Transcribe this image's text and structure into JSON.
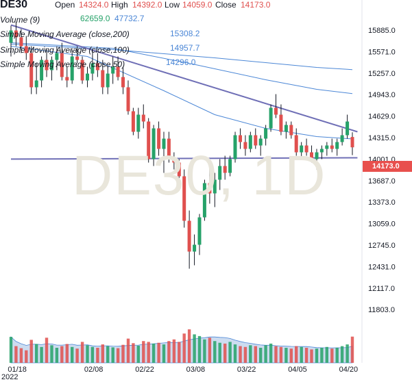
{
  "symbol": "DE30",
  "watermark": "DE30, 1D",
  "ohlc": {
    "open_label": "Open",
    "open": "14324.0",
    "high_label": "High",
    "high": "14392.0",
    "low_label": "Low",
    "low": "14059.0",
    "close_label": "Close",
    "close": "14173.0"
  },
  "volume": {
    "label": "Volume (9)",
    "value1": "62659.0",
    "value2": "47732.7"
  },
  "indicators": [
    {
      "label": "Simple Moving Average (close,200)",
      "value": "15308.2"
    },
    {
      "label": "Simple Moving Average (close,100)",
      "value": "14957.7"
    },
    {
      "label": "Simple Moving Average (close,50)",
      "value": "14296.0"
    }
  ],
  "price_badge": "14173.0",
  "colors": {
    "up": "#26a269",
    "down": "#e0504e",
    "ma": "#4a86d6",
    "trendline": "#6f6fb6",
    "volume_area": "#b8cdea",
    "badge": "#e8504d"
  },
  "chart_data": {
    "type": "candlestick",
    "ylim": [
      11600,
      16050
    ],
    "y_ticks": [
      15885.0,
      15571.0,
      15257.0,
      14943.0,
      14629.0,
      14315.0,
      14001.0,
      13687.0,
      13373.0,
      13059.0,
      12745.0,
      12431.0,
      12117.0,
      11803.0
    ],
    "y_tick_labels": [
      "15885.0",
      "15571.0",
      "15257.0",
      "14943.0",
      "14629.0",
      "14315.0",
      "14001.0",
      "13687.0",
      "13373.0",
      "13059.0",
      "12745.0",
      "12431.0",
      "12117.0",
      "11803.0"
    ],
    "x_labels": [
      {
        "label": "01/18",
        "index": 1
      },
      {
        "label": "02/08",
        "index": 16
      },
      {
        "label": "02/22",
        "index": 26
      },
      {
        "label": "03/08",
        "index": 36
      },
      {
        "label": "03/22",
        "index": 46
      },
      {
        "label": "04/05",
        "index": 56
      },
      {
        "label": "04/20",
        "index": 66
      }
    ],
    "x_year_label": "2022",
    "candles": [
      {
        "o": 15700,
        "h": 15950,
        "l": 15500,
        "c": 15880
      },
      {
        "o": 15880,
        "h": 16000,
        "l": 15650,
        "c": 15780
      },
      {
        "o": 15780,
        "h": 15900,
        "l": 15550,
        "c": 15650
      },
      {
        "o": 15650,
        "h": 15800,
        "l": 15450,
        "c": 15550
      },
      {
        "o": 15550,
        "h": 15650,
        "l": 14950,
        "c": 15050
      },
      {
        "o": 15050,
        "h": 15400,
        "l": 14950,
        "c": 15150
      },
      {
        "o": 15150,
        "h": 15500,
        "l": 15050,
        "c": 15450
      },
      {
        "o": 15450,
        "h": 15600,
        "l": 15200,
        "c": 15300
      },
      {
        "o": 15300,
        "h": 15500,
        "l": 15150,
        "c": 15450
      },
      {
        "o": 15450,
        "h": 15650,
        "l": 15300,
        "c": 15550
      },
      {
        "o": 15550,
        "h": 15700,
        "l": 15150,
        "c": 15200
      },
      {
        "o": 15200,
        "h": 15350,
        "l": 15050,
        "c": 15150
      },
      {
        "o": 15150,
        "h": 15600,
        "l": 15100,
        "c": 15500
      },
      {
        "o": 15500,
        "h": 15650,
        "l": 15400,
        "c": 15450
      },
      {
        "o": 15450,
        "h": 15500,
        "l": 15100,
        "c": 15150
      },
      {
        "o": 15150,
        "h": 15350,
        "l": 15050,
        "c": 15250
      },
      {
        "o": 15250,
        "h": 15600,
        "l": 15150,
        "c": 15400
      },
      {
        "o": 15400,
        "h": 15550,
        "l": 15200,
        "c": 15300
      },
      {
        "o": 15300,
        "h": 15450,
        "l": 14950,
        "c": 15050
      },
      {
        "o": 15050,
        "h": 15350,
        "l": 14950,
        "c": 15250
      },
      {
        "o": 15250,
        "h": 15500,
        "l": 15100,
        "c": 15350
      },
      {
        "o": 15350,
        "h": 15500,
        "l": 15150,
        "c": 15200
      },
      {
        "o": 15200,
        "h": 15350,
        "l": 14950,
        "c": 15050
      },
      {
        "o": 15050,
        "h": 15150,
        "l": 14650,
        "c": 14700
      },
      {
        "o": 14700,
        "h": 14750,
        "l": 14350,
        "c": 14400
      },
      {
        "o": 14400,
        "h": 14750,
        "l": 14300,
        "c": 14650
      },
      {
        "o": 14650,
        "h": 14800,
        "l": 14450,
        "c": 14550
      },
      {
        "o": 14550,
        "h": 14600,
        "l": 13950,
        "c": 14000
      },
      {
        "o": 14000,
        "h": 14500,
        "l": 13900,
        "c": 14450
      },
      {
        "o": 14450,
        "h": 14550,
        "l": 14050,
        "c": 14150
      },
      {
        "o": 14150,
        "h": 14400,
        "l": 13800,
        "c": 14300
      },
      {
        "o": 14300,
        "h": 14400,
        "l": 13950,
        "c": 14000
      },
      {
        "o": 14000,
        "h": 14100,
        "l": 13850,
        "c": 13950
      },
      {
        "o": 13950,
        "h": 14000,
        "l": 13650,
        "c": 13750
      },
      {
        "o": 13750,
        "h": 13850,
        "l": 13000,
        "c": 13100
      },
      {
        "o": 13100,
        "h": 13250,
        "l": 12400,
        "c": 12650
      },
      {
        "o": 12650,
        "h": 12900,
        "l": 12450,
        "c": 12750
      },
      {
        "o": 12750,
        "h": 13200,
        "l": 12600,
        "c": 13150
      },
      {
        "o": 13150,
        "h": 13700,
        "l": 13100,
        "c": 13650
      },
      {
        "o": 13650,
        "h": 13900,
        "l": 13350,
        "c": 13500
      },
      {
        "o": 13500,
        "h": 13800,
        "l": 13300,
        "c": 13700
      },
      {
        "o": 13700,
        "h": 14000,
        "l": 13550,
        "c": 13900
      },
      {
        "o": 13900,
        "h": 14050,
        "l": 13700,
        "c": 13800
      },
      {
        "o": 13800,
        "h": 14050,
        "l": 13750,
        "c": 14000
      },
      {
        "o": 14000,
        "h": 14400,
        "l": 13950,
        "c": 14350
      },
      {
        "o": 14350,
        "h": 14450,
        "l": 14150,
        "c": 14250
      },
      {
        "o": 14250,
        "h": 14350,
        "l": 14050,
        "c": 14150
      },
      {
        "o": 14150,
        "h": 14400,
        "l": 14100,
        "c": 14350
      },
      {
        "o": 14350,
        "h": 14450,
        "l": 14150,
        "c": 14200
      },
      {
        "o": 14200,
        "h": 14350,
        "l": 14050,
        "c": 14300
      },
      {
        "o": 14300,
        "h": 14500,
        "l": 14200,
        "c": 14450
      },
      {
        "o": 14450,
        "h": 14800,
        "l": 14400,
        "c": 14750
      },
      {
        "o": 14750,
        "h": 14950,
        "l": 14600,
        "c": 14650
      },
      {
        "o": 14650,
        "h": 14800,
        "l": 14350,
        "c": 14400
      },
      {
        "o": 14400,
        "h": 14550,
        "l": 14300,
        "c": 14500
      },
      {
        "o": 14500,
        "h": 14550,
        "l": 14300,
        "c": 14350
      },
      {
        "o": 14350,
        "h": 14450,
        "l": 14050,
        "c": 14100
      },
      {
        "o": 14100,
        "h": 14250,
        "l": 14000,
        "c": 14200
      },
      {
        "o": 14200,
        "h": 14300,
        "l": 14050,
        "c": 14100
      },
      {
        "o": 14100,
        "h": 14200,
        "l": 13950,
        "c": 14000
      },
      {
        "o": 14000,
        "h": 14150,
        "l": 13850,
        "c": 14100
      },
      {
        "o": 14100,
        "h": 14200,
        "l": 14000,
        "c": 14150
      },
      {
        "o": 14150,
        "h": 14250,
        "l": 14050,
        "c": 14200
      },
      {
        "o": 14200,
        "h": 14300,
        "l": 14100,
        "c": 14150
      },
      {
        "o": 14150,
        "h": 14300,
        "l": 14050,
        "c": 14250
      },
      {
        "o": 14250,
        "h": 14450,
        "l": 14200,
        "c": 14350
      },
      {
        "o": 14350,
        "h": 14650,
        "l": 14300,
        "c": 14550
      },
      {
        "o": 14324,
        "h": 14392,
        "l": 14059,
        "c": 14173
      }
    ],
    "volume": [
      62000,
      40000,
      35000,
      30000,
      55000,
      45000,
      38000,
      60000,
      42000,
      36000,
      40000,
      45000,
      38000,
      34000,
      50000,
      42000,
      38000,
      36000,
      44000,
      40000,
      37000,
      35000,
      43000,
      58000,
      47000,
      41000,
      52000,
      50000,
      46000,
      48000,
      44000,
      52000,
      56000,
      50000,
      70000,
      80000,
      68000,
      64000,
      56000,
      60000,
      52000,
      48000,
      46000,
      50000,
      44000,
      40000,
      38000,
      42000,
      40000,
      36000,
      42000,
      46000,
      40000,
      38000,
      36000,
      34000,
      40000,
      38000,
      36000,
      32000,
      34000,
      36000,
      38000,
      34000,
      36000,
      40000,
      44000,
      62659
    ],
    "moving_averages": [
      {
        "period": 200,
        "value": 15308.2,
        "points": [
          {
            "i": 0,
            "v": 15680
          },
          {
            "i": 20,
            "v": 15600
          },
          {
            "i": 40,
            "v": 15480
          },
          {
            "i": 60,
            "v": 15340
          },
          {
            "i": 67,
            "v": 15308
          }
        ]
      },
      {
        "period": 100,
        "value": 14957.7,
        "points": [
          {
            "i": 0,
            "v": 15700
          },
          {
            "i": 20,
            "v": 15620
          },
          {
            "i": 35,
            "v": 15400
          },
          {
            "i": 50,
            "v": 15160
          },
          {
            "i": 60,
            "v": 15020
          },
          {
            "i": 67,
            "v": 14958
          }
        ]
      },
      {
        "period": 50,
        "value": 14296.0,
        "points": [
          {
            "i": 0,
            "v": 15650
          },
          {
            "i": 15,
            "v": 15500
          },
          {
            "i": 30,
            "v": 15000
          },
          {
            "i": 40,
            "v": 14650
          },
          {
            "i": 50,
            "v": 14450
          },
          {
            "i": 60,
            "v": 14330
          },
          {
            "i": 67,
            "v": 14296
          }
        ]
      }
    ],
    "trendlines": [
      {
        "from": {
          "i": 0,
          "v": 15960
        },
        "to": {
          "i": 68,
          "v": 14400
        }
      },
      {
        "from": {
          "i": 0,
          "v": 14001
        },
        "to": {
          "i": 68,
          "v": 14020
        }
      }
    ]
  }
}
